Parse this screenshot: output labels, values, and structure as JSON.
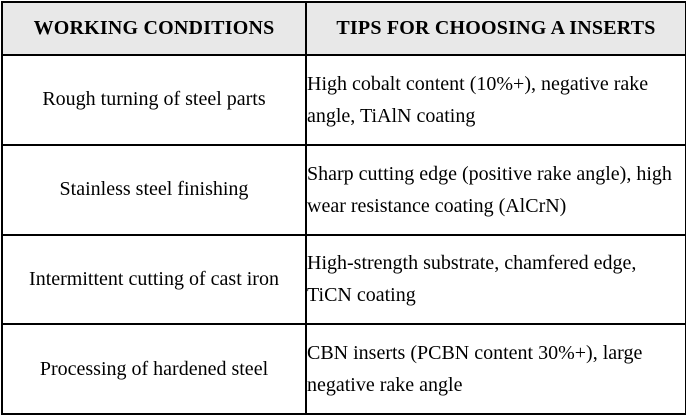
{
  "table": {
    "headers": [
      {
        "label": "WORKING CONDITIONS"
      },
      {
        "label": "TIPS FOR CHOOSING A INSERTS"
      }
    ],
    "rows": [
      {
        "condition": "Rough turning of steel parts",
        "tip": "High cobalt content (10%+), negative rake angle, TiAlN coating"
      },
      {
        "condition": "Stainless steel finishing",
        "tip": "Sharp cutting edge (positive rake angle), high wear resistance coating (AlCrN)"
      },
      {
        "condition": "Intermittent cutting of cast iron",
        "tip": "High-strength substrate, chamfered edge, TiCN coating"
      },
      {
        "condition": "Processing of hardened steel",
        "tip": "CBN inserts (PCBN content 30%+), large negative rake angle"
      }
    ],
    "colors": {
      "header_bg": "#e8e8e8",
      "body_bg": "#ffffff",
      "border": "#000000",
      "text": "#000000"
    }
  }
}
